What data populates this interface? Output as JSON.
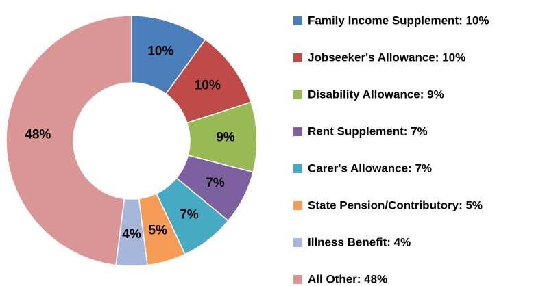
{
  "chart_data": {
    "type": "donut",
    "categories": [
      "Family Income Supplement: 10%",
      "Jobseeker's Allowance: 10%",
      "Disability Allowance: 9%",
      "Rent Supplement: 7%",
      "Carer's Allowance: 7%",
      "State Pension/Contributory: 5%",
      "Illness Benefit: 4%",
      "All Other: 48%"
    ],
    "values": [
      10,
      10,
      9,
      7,
      7,
      5,
      4,
      48
    ],
    "value_labels": [
      "10%",
      "10%",
      "9%",
      "7%",
      "7%",
      "5%",
      "4%",
      "48%"
    ],
    "colors": [
      "#4a7ebb",
      "#be4b48",
      "#98b954",
      "#7d60a0",
      "#46aac5",
      "#f59d56",
      "#a5b8dc",
      "#d99694"
    ],
    "legend": "right"
  }
}
